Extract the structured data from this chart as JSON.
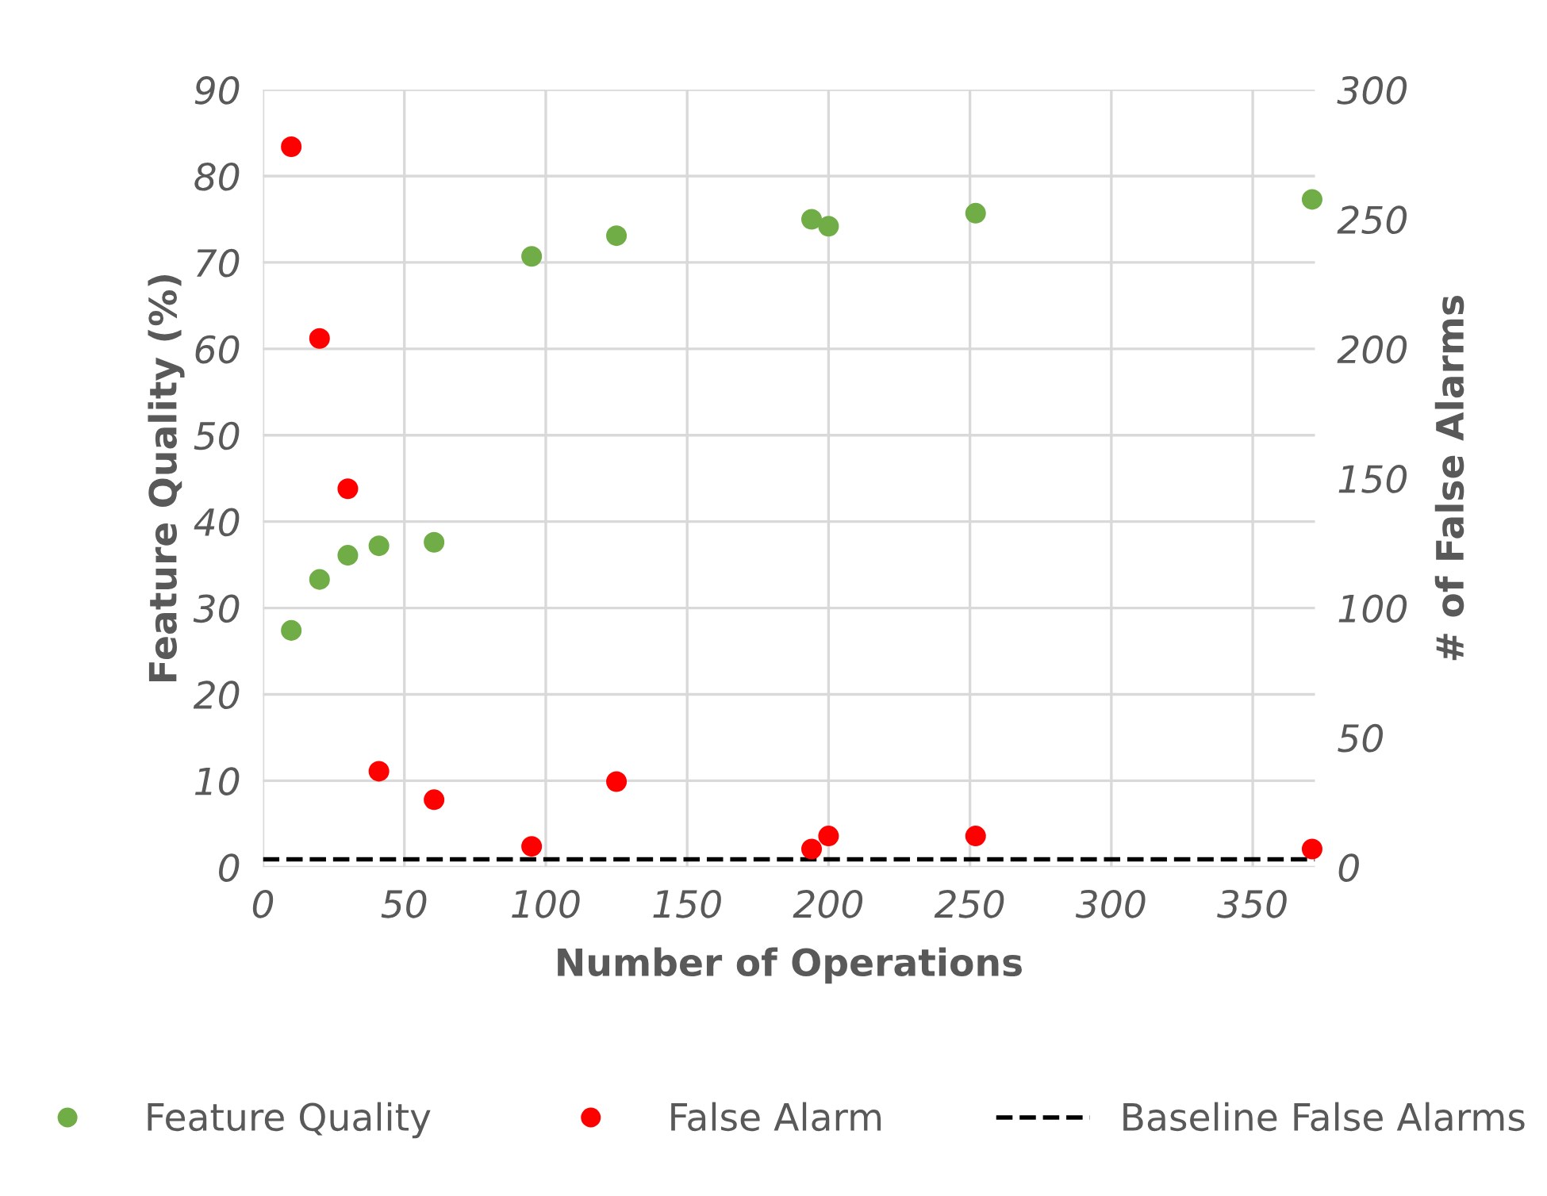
{
  "chart_data": {
    "type": "scatter",
    "xlabel": "Number of Operations",
    "ylabel": "Feature Quality (%)",
    "y2label": "# of False Alarms",
    "xlim": [
      0,
      372
    ],
    "xticks": [
      0,
      50,
      100,
      150,
      200,
      250,
      300,
      350
    ],
    "ylim": [
      0,
      90
    ],
    "yticks": [
      0,
      10,
      20,
      30,
      40,
      50,
      60,
      70,
      80,
      90
    ],
    "y2lim": [
      0,
      300
    ],
    "y2ticks": [
      0,
      50,
      100,
      150,
      200,
      250,
      300
    ],
    "grid": true,
    "legend": "bottom",
    "marker": "circle",
    "series": [
      {
        "name": "Feature Quality",
        "color": "#70ad47",
        "x": [
          10,
          20,
          30,
          41,
          60.5,
          95,
          125,
          194,
          200,
          252,
          371
        ],
        "values": [
          27.4,
          33.3,
          36.1,
          37.2,
          37.6,
          70.7,
          73.1,
          75,
          74.2,
          75.7,
          77.3
        ]
      },
      {
        "name": "False Alarm",
        "color": "#ff0000",
        "axis": "y2",
        "x": [
          10,
          20,
          30,
          41,
          60.5,
          95,
          125,
          194,
          200,
          252,
          371
        ],
        "values": [
          278,
          204,
          146,
          37,
          26,
          8,
          33,
          7,
          12,
          12,
          7
        ]
      }
    ],
    "ref_lines": [
      {
        "axis": "y2",
        "value": 3,
        "label": "Baseline False Alarms",
        "color": "#000000",
        "line_style": "dashed"
      }
    ]
  }
}
